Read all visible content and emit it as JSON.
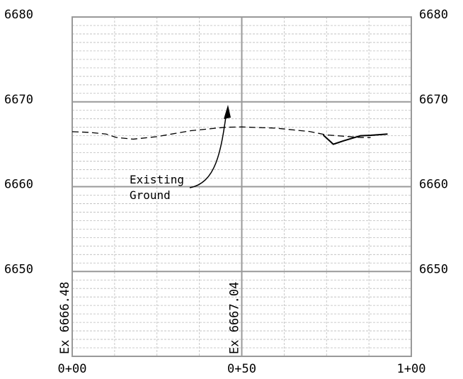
{
  "chart_data": {
    "type": "line",
    "x_ticks": [
      "0+00",
      "0+50",
      "1+00"
    ],
    "x_range": [
      0,
      100
    ],
    "y_ticks": [
      6680,
      6670,
      6660,
      6650
    ],
    "y_range": [
      6640,
      6680
    ],
    "grid": true,
    "series": [
      {
        "name": "Existing Ground",
        "style": "dashed",
        "x": [
          0,
          5,
          10,
          13,
          18,
          25,
          35,
          45,
          50,
          60,
          70,
          75,
          85,
          88
        ],
        "y": [
          6666.48,
          6666.4,
          6666.2,
          6665.8,
          6665.6,
          6665.9,
          6666.6,
          6667.0,
          6667.04,
          6666.9,
          6666.5,
          6666.1,
          6665.8,
          6665.8
        ]
      },
      {
        "name": "",
        "style": "solid",
        "x": [
          74,
          77,
          80,
          85,
          88,
          93
        ],
        "y": [
          6666.1,
          6665.0,
          6665.4,
          6666.0,
          6666.05,
          6666.2
        ]
      }
    ],
    "station_labels": [
      {
        "x": 0,
        "text": "Ex 6666.48"
      },
      {
        "x": 50,
        "text": "Ex 6667.04"
      }
    ],
    "annotation": {
      "lines": [
        "Existing",
        "Ground"
      ]
    }
  }
}
